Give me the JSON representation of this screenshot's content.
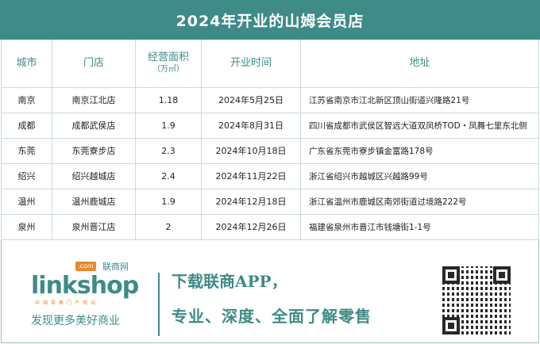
{
  "title": "2024年开业的山姆会员店",
  "table": {
    "headers": {
      "city": "城市",
      "store": "门店",
      "area": "经营面积",
      "area_unit": "（万㎡）",
      "date": "开业时间",
      "address": "地址"
    },
    "rows": [
      {
        "city": "南京",
        "store": "南京江北店",
        "area": "1.18",
        "date": "2024年5月25日",
        "address": "江苏省南京市江北新区顶山街道兴隆路21号"
      },
      {
        "city": "成都",
        "store": "成都武侯店",
        "area": "1.9",
        "date": "2024年8月31日",
        "address": "四川省成都市武侯区智远大道双凤桥TOD・凤舞七里东北侧"
      },
      {
        "city": "东莞",
        "store": "东莞寮步店",
        "area": "2.3",
        "date": "2024年10月18日",
        "address": "广东省东莞市寮步镇金富路178号"
      },
      {
        "city": "绍兴",
        "store": "绍兴越城店",
        "area": "2.4",
        "date": "2024年11月22日",
        "address": "浙江省绍兴市越城区兴越路99号"
      },
      {
        "city": "温州",
        "store": "温州鹿城店",
        "area": "1.9",
        "date": "2024年12月18日",
        "address": "浙江省温州市鹿城区南郊街道过境路222号"
      },
      {
        "city": "泉州",
        "store": "泉州晋江店",
        "area": "2",
        "date": "2024年12月26日",
        "address": "福建省泉州市晋江市钱塘街1-1号"
      }
    ]
  },
  "footer": {
    "logo": {
      "com": ".com",
      "cn": "联商网",
      "word": "linkshop",
      "tag": "中国零售门户网站"
    },
    "slogan": "发现更多美好商业",
    "promo_line1": "下载联商APP，",
    "promo_line2": "专业、深度、全面了解零售"
  },
  "colors": {
    "accent": "#3e8b88",
    "orange": "#e8892f"
  }
}
